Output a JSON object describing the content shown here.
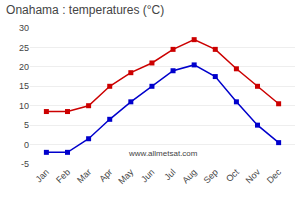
{
  "chart_data": {
    "type": "line",
    "title": "Onahama : temperatures (°C)",
    "categories": [
      "Jan",
      "Feb",
      "Mar",
      "Apr",
      "May",
      "Jun",
      "Jul",
      "Aug",
      "Sep",
      "Oct",
      "Nov",
      "Dec"
    ],
    "series": [
      {
        "color": "#cc0000",
        "marker": "square",
        "values": [
          8.5,
          8.5,
          10.0,
          15.0,
          18.5,
          21.0,
          24.5,
          27.0,
          24.5,
          19.5,
          15.0,
          10.5
        ]
      },
      {
        "color": "#0000cc",
        "marker": "square",
        "values": [
          -2.0,
          -2.0,
          1.5,
          6.5,
          11.0,
          15.0,
          19.0,
          20.5,
          17.5,
          11.0,
          5.0,
          0.5
        ]
      }
    ],
    "ylim": [
      -5,
      30
    ],
    "yticks": [
      -5,
      0,
      5,
      10,
      15,
      20,
      25,
      30
    ],
    "grid": true,
    "annotations": [
      "www.allmetsat.com"
    ]
  }
}
